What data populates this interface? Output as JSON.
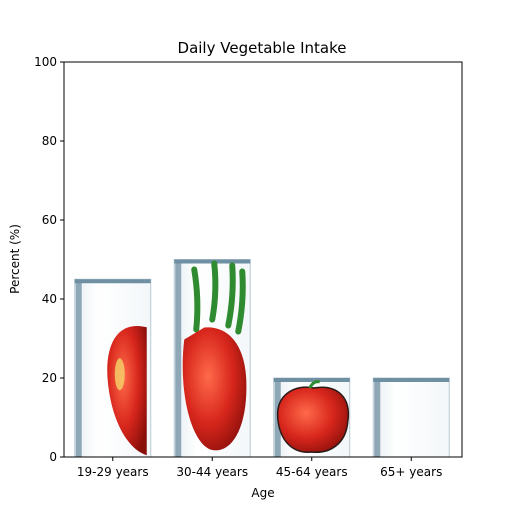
{
  "chart_data": {
    "type": "bar",
    "title": "Daily Vegetable Intake",
    "xlabel": "Age",
    "ylabel": "Percent (%)",
    "categories": [
      "19-29 years",
      "30-44 years",
      "45-64 years",
      "65+ years"
    ],
    "values": [
      45,
      50,
      20,
      20
    ],
    "ylim": [
      0,
      100
    ],
    "yticks": [
      "0",
      "20",
      "40",
      "60",
      "80",
      "100"
    ],
    "grid": false,
    "bar_style": "pictorial vegetable images (red peppers / tomatoes) in glass-like containers"
  },
  "colors": {
    "bar_fill": "#fbfcfc",
    "bar_frame": "#6f8fa3",
    "vegetable_red": "#d7261c",
    "vegetable_green": "#2f8b2f"
  }
}
